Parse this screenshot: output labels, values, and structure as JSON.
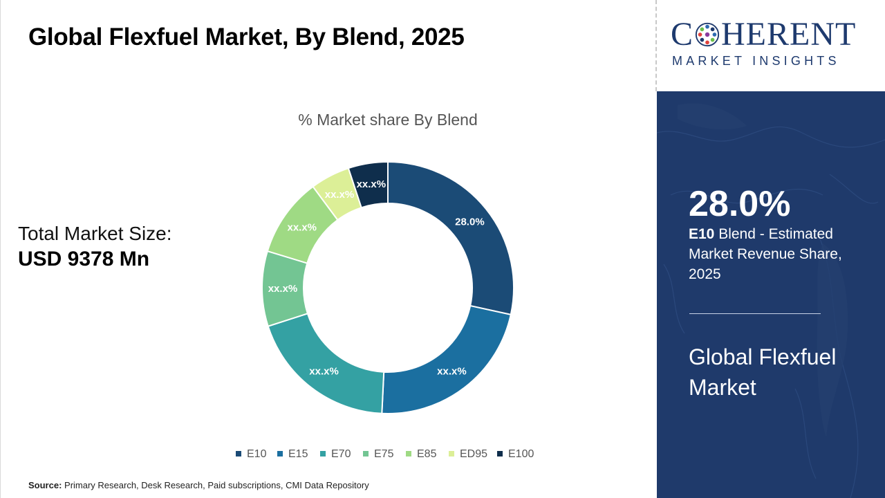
{
  "title": "Global Flexfuel Market, By Blend, 2025",
  "market_size": {
    "label": "Total Market Size:",
    "value": "USD 9378 Mn"
  },
  "source": {
    "label": "Source:",
    "text": " Primary Research, Desk Research, Paid subscriptions, CMI Data Repository"
  },
  "logo": {
    "word_start": "C",
    "word_end": "HERENT",
    "tagline": "MARKET INSIGHTS"
  },
  "side": {
    "stat": "28.0%",
    "desc_bold": "E10",
    "desc_rest": " Blend - Estimated Market Revenue Share, 2025",
    "market": "Global Flexfuel Market"
  },
  "chart_data": {
    "type": "pie",
    "title": "% Market share By Blend",
    "donut": true,
    "legend_position": "bottom",
    "categories": [
      "E10",
      "E15",
      "E70",
      "E75",
      "E85",
      "ED95",
      "E100"
    ],
    "values": [
      28.0,
      22.0,
      19.0,
      9.5,
      10.0,
      5.0,
      5.0
    ],
    "labels": [
      "28.0%",
      "xx.x%",
      "xx.x%",
      "xx.x%",
      "xx.x%",
      "xx.x%",
      "xx.x%"
    ],
    "colors": [
      "#1b4b76",
      "#1b6fa0",
      "#34a1a3",
      "#73c593",
      "#9fda84",
      "#dcef97",
      "#0f2e4c"
    ],
    "label_colors": [
      "#ffffff",
      "#ffffff",
      "#ffffff",
      "#ffffff",
      "#ffffff",
      "#ffffff",
      "#ffffff"
    ]
  },
  "colors": {
    "side_panel": "#1f3a6b",
    "brand_text": "#1e3a6e"
  }
}
